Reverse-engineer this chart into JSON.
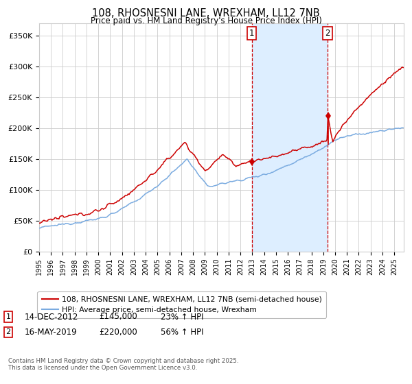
{
  "title": "108, RHOSNESNI LANE, WREXHAM, LL12 7NB",
  "subtitle": "Price paid vs. HM Land Registry's House Price Index (HPI)",
  "legend_line1": "108, RHOSNESNI LANE, WREXHAM, LL12 7NB (semi-detached house)",
  "legend_line2": "HPI: Average price, semi-detached house, Wrexham",
  "annotation1_date": "14-DEC-2012",
  "annotation1_price": 145000,
  "annotation1_hpi": "23% ↑ HPI",
  "annotation2_date": "16-MAY-2019",
  "annotation2_price": 220000,
  "annotation2_hpi": "56% ↑ HPI",
  "red_color": "#cc0000",
  "blue_color": "#7aabe0",
  "background_color": "#ffffff",
  "shading_color": "#ddeeff",
  "grid_color": "#cccccc",
  "footnote": "Contains HM Land Registry data © Crown copyright and database right 2025.\nThis data is licensed under the Open Government Licence v3.0.",
  "xlim_start": 1995.0,
  "xlim_end": 2025.8,
  "ylim_min": 0,
  "ylim_max": 370000,
  "t_marker1": 2012.96,
  "t_marker2": 2019.37
}
